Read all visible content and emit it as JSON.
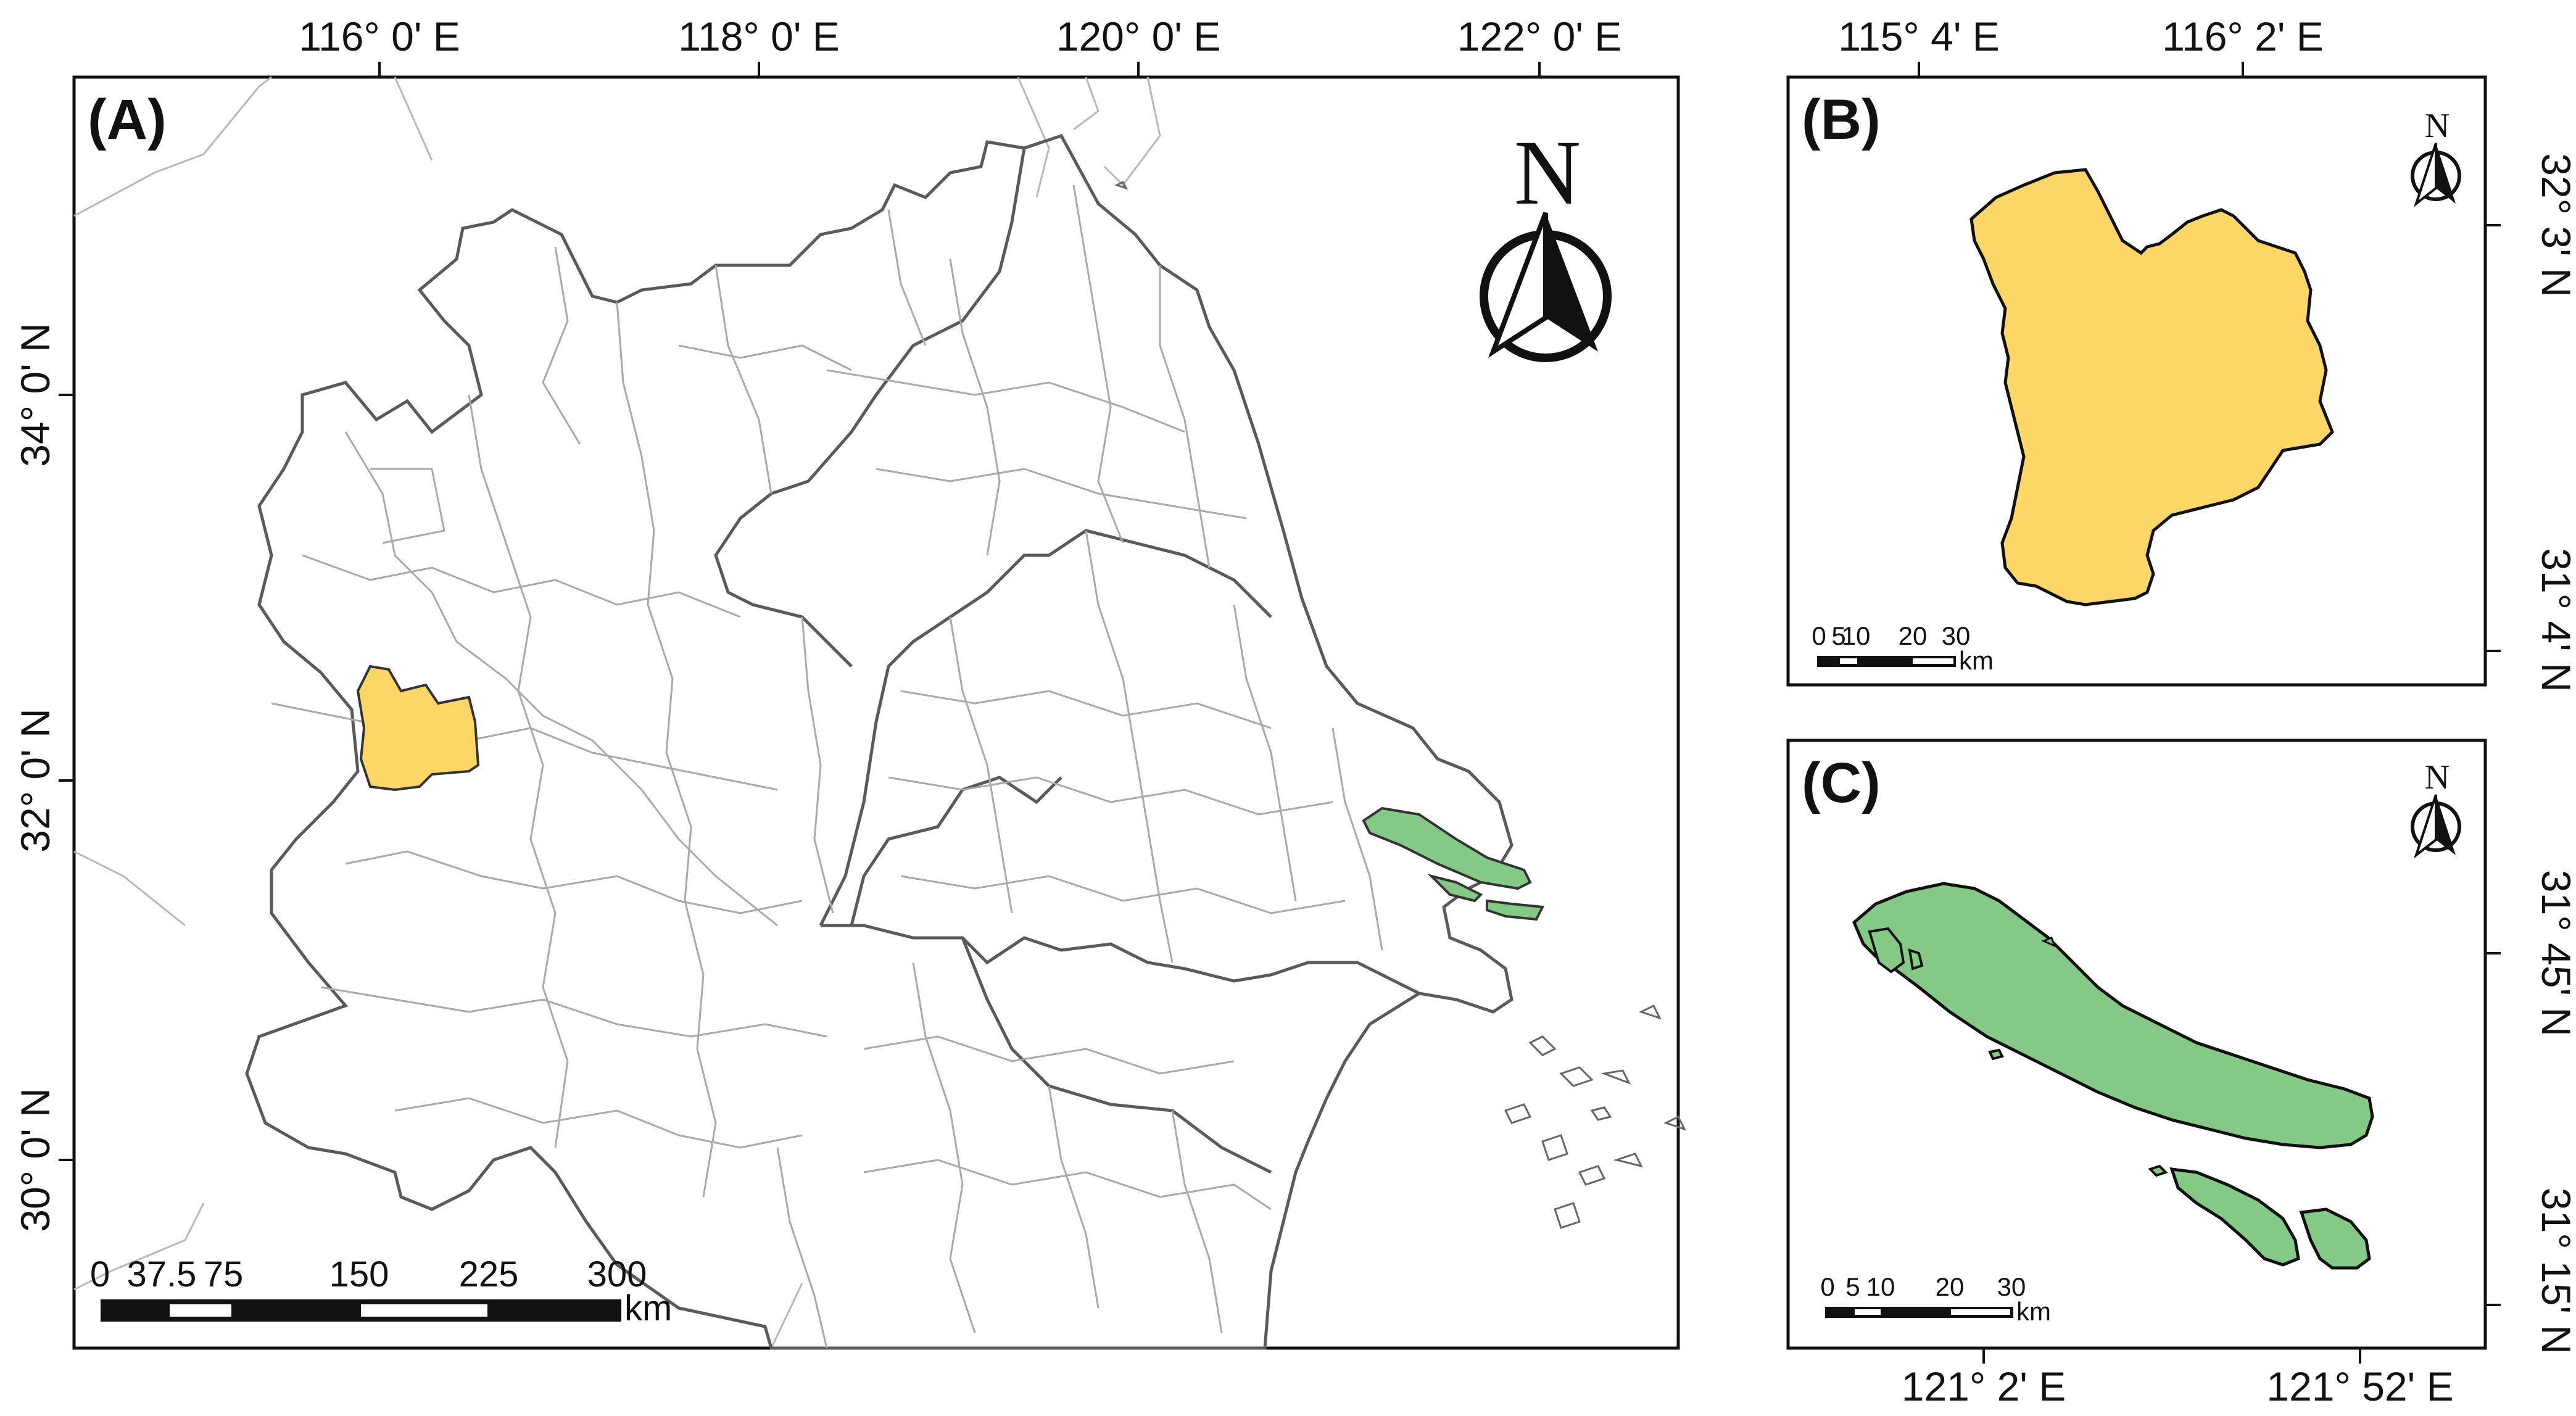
{
  "colors": {
    "yellow_region": "#fcd666",
    "green_region": "#85c986",
    "frame": "#111111",
    "county_lines": "#a9a9a9",
    "province_lines": "#5a5a5a"
  },
  "panel_a": {
    "label": "(A)",
    "north_label": "N",
    "lon_ticks": [
      "116°  0' E",
      "118°  0' E",
      "120°  0' E",
      "122°  0' E"
    ],
    "lat_ticks": [
      "34°  0' N",
      "32°  0' N",
      "30°  0' N"
    ],
    "scale": {
      "ticks": [
        "0",
        "37.5",
        "75",
        "150",
        "225",
        "300"
      ],
      "unit": "km"
    }
  },
  "panel_b": {
    "label": "(B)",
    "north_label": "N",
    "lon_ticks": [
      "115° 4' E",
      "116° 2' E"
    ],
    "lat_ticks": [
      "32° 3' N",
      "31° 4' N"
    ],
    "scale": {
      "ticks": [
        "0",
        "5",
        "10",
        "20",
        "30"
      ],
      "unit": "km"
    }
  },
  "panel_c": {
    "label": "(C)",
    "north_label": "N",
    "lon_ticks": [
      "121° 2' E",
      "121° 52' E"
    ],
    "lat_ticks": [
      "31° 45' N",
      "31° 15' N"
    ],
    "scale": {
      "ticks": [
        "0",
        "5",
        "10",
        "20",
        "30"
      ],
      "unit": "km"
    }
  }
}
